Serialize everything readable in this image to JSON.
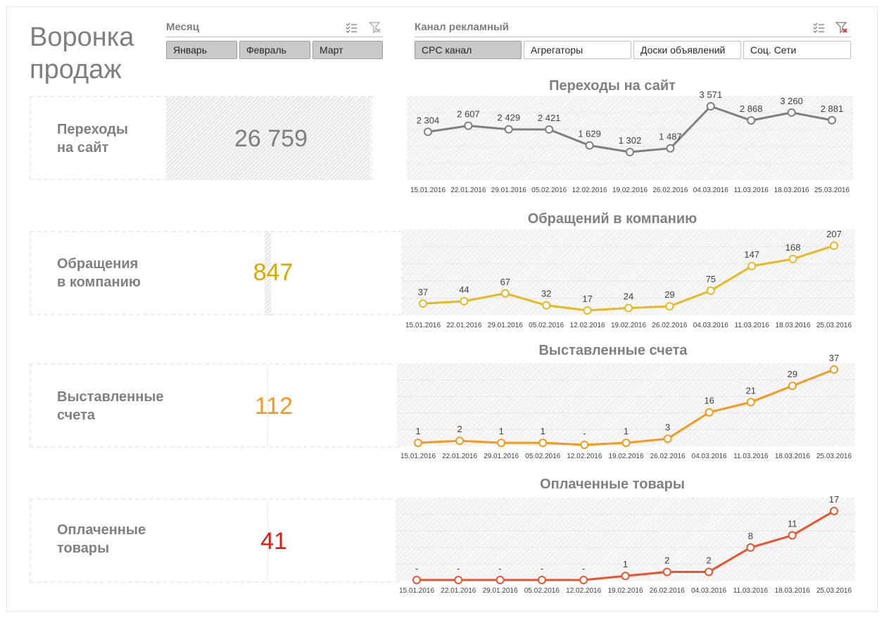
{
  "page": {
    "title_line1": "Воронка",
    "title_line2": "продаж"
  },
  "slicers": {
    "month": {
      "title": "Месяц",
      "buttons": [
        {
          "label": "Январь",
          "selected": true
        },
        {
          "label": "Февраль",
          "selected": true
        },
        {
          "label": "Март",
          "selected": true
        }
      ]
    },
    "channel": {
      "title": "Канал рекламный",
      "buttons": [
        {
          "label": "CPC канал",
          "selected": true
        },
        {
          "label": "Агрегаторы",
          "selected": false
        },
        {
          "label": "Доски объявлений",
          "selected": false
        },
        {
          "label": "Соц. Сети",
          "selected": false
        }
      ]
    }
  },
  "kpis": [
    {
      "label_line1": "Переходы",
      "label_line2": "на сайт",
      "value": "26 759",
      "color": "#7f7f7f"
    },
    {
      "label_line1": "Обращения",
      "label_line2": "в компанию",
      "value": "847",
      "color": "#d8a800"
    },
    {
      "label_line1": "Выставленные",
      "label_line2": "счета",
      "value": "112",
      "color": "#f39a1b"
    },
    {
      "label_line1": "Оплаченные",
      "label_line2": "товары",
      "value": "41",
      "color": "#e31b10"
    }
  ],
  "chart_data": [
    {
      "type": "line",
      "title": "Переходы на сайт",
      "color": "#7f7f7f",
      "x": [
        "15.01.2016",
        "22.01.2016",
        "29.01.2016",
        "05.02.2016",
        "12.02.2016",
        "19.02.2016",
        "26.02.2016",
        "04.03.2016",
        "11.03.2016",
        "18.03.2016",
        "25.03.2016"
      ],
      "values": [
        2304,
        2607,
        2429,
        2421,
        1629,
        1302,
        1487,
        3571,
        2868,
        3260,
        2881
      ],
      "labels": [
        "2 304",
        "2 607",
        "2 429",
        "2 421",
        "1 629",
        "1 302",
        "1 487",
        "3 571",
        "2 868",
        "3 260",
        "2 881"
      ]
    },
    {
      "type": "line",
      "title": "Обращений в компанию",
      "color": "#e6b91e",
      "x": [
        "15.01.2016",
        "22.01.2016",
        "29.01.2016",
        "05.02.2016",
        "12.02.2016",
        "19.02.2016",
        "26.02.2016",
        "04.03.2016",
        "11.03.2016",
        "18.03.2016",
        "25.03.2016"
      ],
      "values": [
        37,
        44,
        67,
        32,
        17,
        24,
        29,
        75,
        147,
        168,
        207
      ],
      "labels": [
        "37",
        "44",
        "67",
        "32",
        "17",
        "24",
        "29",
        "75",
        "147",
        "168",
        "207"
      ]
    },
    {
      "type": "line",
      "title": "Выставленные счета",
      "color": "#f39a1b",
      "x": [
        "15.01.2016",
        "22.01.2016",
        "29.01.2016",
        "05.02.2016",
        "12.02.2016",
        "19.02.2016",
        "26.02.2016",
        "04.03.2016",
        "11.03.2016",
        "18.03.2016",
        "25.03.2016"
      ],
      "values": [
        1,
        2,
        1,
        1,
        0,
        1,
        3,
        16,
        21,
        29,
        37
      ],
      "labels": [
        "1",
        "2",
        "1",
        "1",
        "-",
        "1",
        "3",
        "16",
        "21",
        "29",
        "37"
      ]
    },
    {
      "type": "line",
      "title": "Оплаченные товары",
      "color": "#e8542f",
      "x": [
        "15.01.2016",
        "22.01.2016",
        "29.01.2016",
        "05.02.2016",
        "12.02.2016",
        "19.02.2016",
        "26.02.2016",
        "04.03.2016",
        "11.03.2016",
        "18.03.2016",
        "25.03.2016"
      ],
      "values": [
        0,
        0,
        0,
        0,
        0,
        1,
        2,
        2,
        8,
        11,
        17
      ],
      "labels": [
        "-",
        "-",
        "-",
        "-",
        "-",
        "1",
        "2",
        "2",
        "8",
        "11",
        "17"
      ]
    }
  ]
}
